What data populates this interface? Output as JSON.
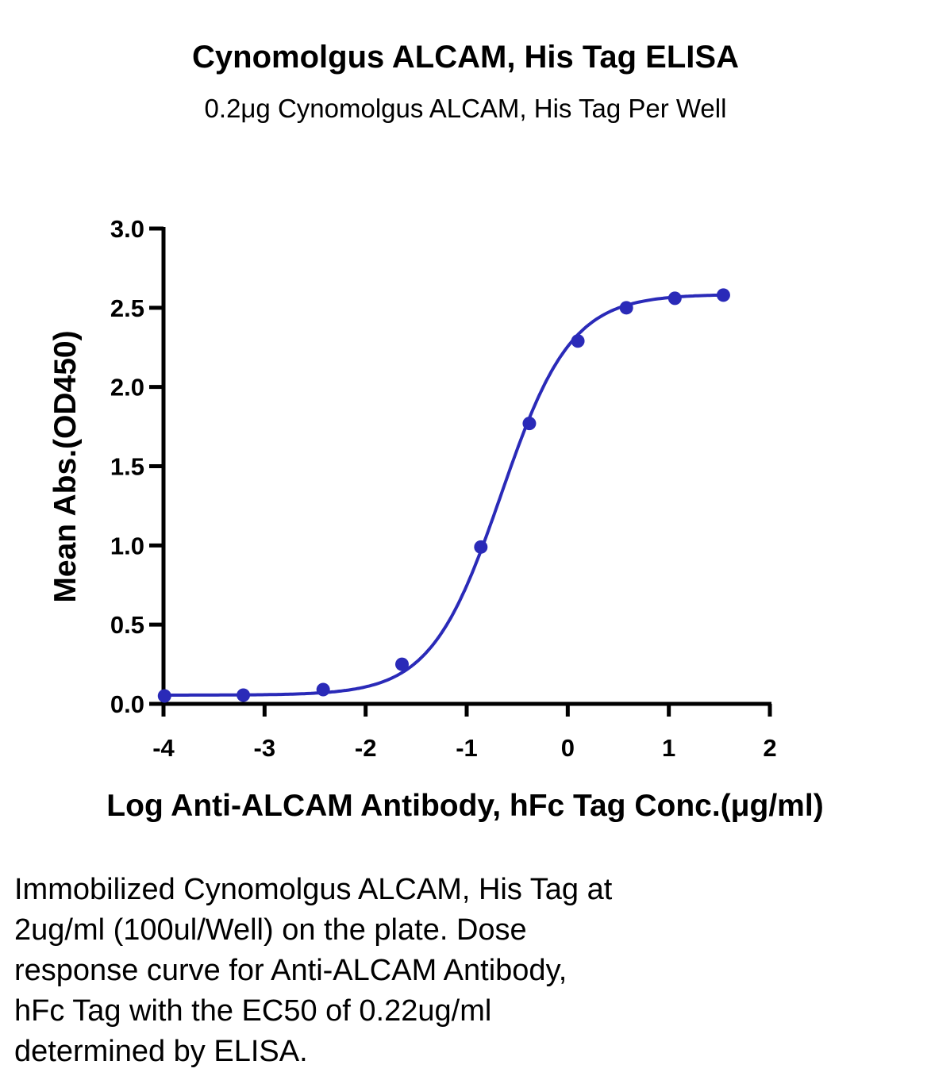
{
  "chart_data": {
    "type": "line",
    "title": "Cynomolgus ALCAM, His Tag ELISA",
    "subtitle": "0.2μg Cynomolgus ALCAM, His Tag Per Well",
    "xlabel": "Log Anti-ALCAM Antibody, hFc Tag Conc.(μg/ml)",
    "ylabel": "Mean Abs.(OD450)",
    "xlim": [
      -4,
      2
    ],
    "ylim": [
      0,
      3.0
    ],
    "x_ticks": [
      "-4",
      "-3",
      "-2",
      "-1",
      "0",
      "1",
      "2"
    ],
    "y_ticks": [
      "0.0",
      "0.5",
      "1.0",
      "1.5",
      "2.0",
      "2.5",
      "3.0"
    ],
    "grid": false,
    "series": [
      {
        "x": [
          -3.99,
          -3.21,
          -2.42,
          -1.64,
          -0.86,
          -0.38,
          0.1,
          0.58,
          1.06,
          1.54
        ],
        "y": [
          0.05,
          0.055,
          0.09,
          0.25,
          0.99,
          1.77,
          2.29,
          2.5,
          2.56,
          2.58
        ],
        "color": "#2a2ab8",
        "fit": {
          "bottom": 0.055,
          "top": 2.585,
          "logEC50": -0.66,
          "hill": 1.25
        }
      }
    ]
  },
  "caption": "Immobilized Cynomolgus ALCAM, His Tag at\n2ug/ml (100ul/Well) on the plate. Dose\nresponse curve for Anti-ALCAM Antibody,\nhFc Tag with the EC50 of 0.22ug/ml\ndetermined by ELISA."
}
